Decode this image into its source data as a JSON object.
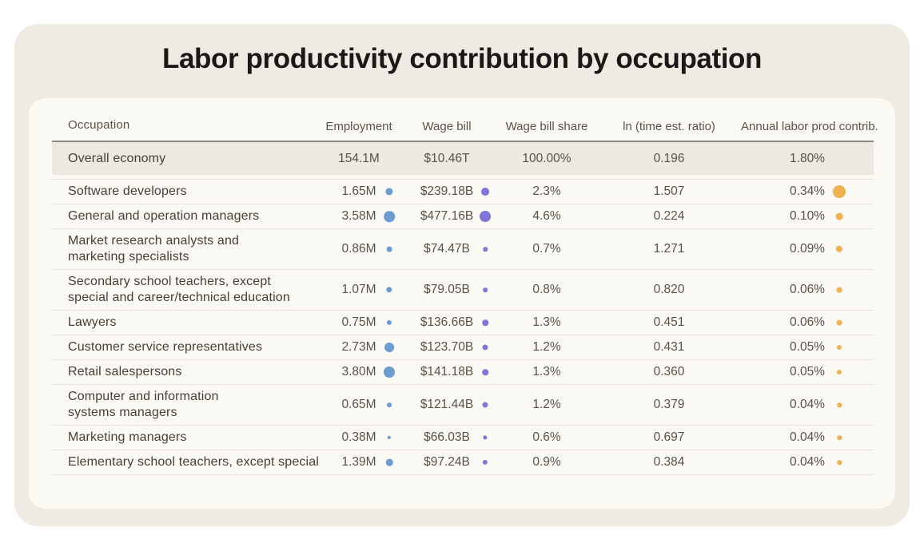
{
  "title": "Labor productivity contribution by occupation",
  "colors": {
    "employment_dot": "#6b9cd2",
    "wage_bill_dot": "#7f76d8",
    "contrib_dot": "#f2b14f",
    "card_background": "#efebe2",
    "panel_background": "#faf9f4",
    "summary_row_background": "#ede9df",
    "header_rule": "#8e8b7e"
  },
  "chart_data": {
    "type": "table",
    "title": "Labor productivity contribution by occupation",
    "columns": [
      "Occupation",
      "Employment",
      "Wage bill",
      "Wage bill share",
      "ln (time est. ratio)",
      "Annual labor prod contrib."
    ],
    "summary_row": {
      "occupation": "Overall economy",
      "employment": "154.1M",
      "wage_bill": "$10.46T",
      "wage_bill_share": "100.00%",
      "ln_time_est_ratio": "0.196",
      "contrib": "1.80%"
    },
    "rows": [
      {
        "occupation": "Software developers",
        "employment": "1.65M",
        "employment_value": 1.65,
        "wage_bill": "$239.18B",
        "wage_bill_value": 239.18,
        "wage_bill_share": "2.3%",
        "ln_time_est_ratio": "1.507",
        "contrib": "0.34%",
        "contrib_value": 0.34
      },
      {
        "occupation": "General and operation managers",
        "employment": "3.58M",
        "employment_value": 3.58,
        "wage_bill": "$477.16B",
        "wage_bill_value": 477.16,
        "wage_bill_share": "4.6%",
        "ln_time_est_ratio": "0.224",
        "contrib": "0.10%",
        "contrib_value": 0.1
      },
      {
        "occupation": "Market research analysts and\nmarketing specialists",
        "employment": "0.86M",
        "employment_value": 0.86,
        "wage_bill": "$74.47B",
        "wage_bill_value": 74.47,
        "wage_bill_share": "0.7%",
        "ln_time_est_ratio": "1.271",
        "contrib": "0.09%",
        "contrib_value": 0.09
      },
      {
        "occupation": "Secondary school teachers, except\nspecial and career/technical education",
        "employment": "1.07M",
        "employment_value": 1.07,
        "wage_bill": "$79.05B",
        "wage_bill_value": 79.05,
        "wage_bill_share": "0.8%",
        "ln_time_est_ratio": "0.820",
        "contrib": "0.06%",
        "contrib_value": 0.06
      },
      {
        "occupation": "Lawyers",
        "employment": "0.75M",
        "employment_value": 0.75,
        "wage_bill": "$136.66B",
        "wage_bill_value": 136.66,
        "wage_bill_share": "1.3%",
        "ln_time_est_ratio": "0.451",
        "contrib": "0.06%",
        "contrib_value": 0.06
      },
      {
        "occupation": "Customer service representatives",
        "employment": "2.73M",
        "employment_value": 2.73,
        "wage_bill": "$123.70B",
        "wage_bill_value": 123.7,
        "wage_bill_share": "1.2%",
        "ln_time_est_ratio": "0.431",
        "contrib": "0.05%",
        "contrib_value": 0.05
      },
      {
        "occupation": "Retail salespersons",
        "employment": "3.80M",
        "employment_value": 3.8,
        "wage_bill": "$141.18B",
        "wage_bill_value": 141.18,
        "wage_bill_share": "1.3%",
        "ln_time_est_ratio": "0.360",
        "contrib": "0.05%",
        "contrib_value": 0.05
      },
      {
        "occupation": "Computer and information\nsystems managers",
        "employment": "0.65M",
        "employment_value": 0.65,
        "wage_bill": "$121.44B",
        "wage_bill_value": 121.44,
        "wage_bill_share": "1.2%",
        "ln_time_est_ratio": "0.379",
        "contrib": "0.04%",
        "contrib_value": 0.04
      },
      {
        "occupation": "Marketing managers",
        "employment": "0.38M",
        "employment_value": 0.38,
        "wage_bill": "$66.03B",
        "wage_bill_value": 66.03,
        "wage_bill_share": "0.6%",
        "ln_time_est_ratio": "0.697",
        "contrib": "0.04%",
        "contrib_value": 0.04
      },
      {
        "occupation": "Elementary school teachers, except special",
        "employment": "1.39M",
        "employment_value": 1.39,
        "wage_bill": "$97.24B",
        "wage_bill_value": 97.24,
        "wage_bill_share": "0.9%",
        "ln_time_est_ratio": "0.384",
        "contrib": "0.04%",
        "contrib_value": 0.04
      }
    ]
  }
}
